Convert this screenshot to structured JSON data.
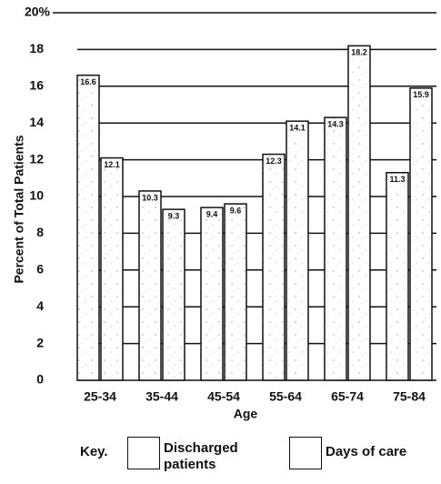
{
  "chart_data": {
    "type": "bar",
    "categories": [
      "25-34",
      "35-44",
      "45-54",
      "55-64",
      "65-74",
      "75-84"
    ],
    "series": [
      {
        "name": "Discharged patients",
        "color": "#ffffff",
        "values": [
          16.6,
          10.3,
          9.4,
          12.3,
          14.3,
          11.3
        ]
      },
      {
        "name": "Days of care",
        "color": "#ffffff",
        "values": [
          12.1,
          9.3,
          9.6,
          14.1,
          18.2,
          15.9
        ]
      }
    ],
    "ylim": [
      0,
      20
    ],
    "yticks": [
      0,
      2,
      4,
      6,
      8,
      10,
      12,
      14,
      16,
      18,
      {
        "value": 20,
        "label": "20%"
      }
    ],
    "y_label": "Percent of Total Patients",
    "x_label": "Age",
    "legend_title": "Key.",
    "grid": true
  }
}
